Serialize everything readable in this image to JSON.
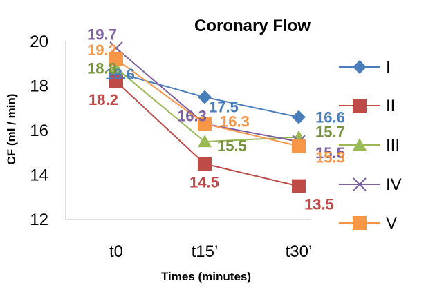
{
  "chart_data": {
    "type": "line",
    "title": "Coronary Flow",
    "xlabel": "Times (minutes)",
    "ylabel": "CF  (ml / min)",
    "categories": [
      "t0",
      "t15’",
      "t30’"
    ],
    "ylim": [
      12,
      20
    ],
    "yticks": [
      "12",
      "14",
      "16",
      "18",
      "20"
    ],
    "grid": false,
    "legend_position": "right",
    "series": [
      {
        "name": "I",
        "color": "#4a7ebb",
        "marker": "diamond",
        "values": [
          18.6,
          17.5,
          16.6
        ],
        "labels": [
          "18.6",
          "17.5",
          "16.6"
        ]
      },
      {
        "name": "II",
        "color": "#be4b48",
        "marker": "square",
        "values": [
          18.2,
          14.5,
          13.5
        ],
        "labels": [
          "18.2",
          "14.5",
          "13.5"
        ]
      },
      {
        "name": "III",
        "color": "#98b954",
        "label_color": "#76923c",
        "marker": "triangle",
        "values": [
          18.8,
          15.5,
          15.7
        ],
        "labels": [
          "18.8",
          "15.5",
          "15.7"
        ]
      },
      {
        "name": "IV",
        "color": "#7d60a0",
        "marker": "x",
        "values": [
          19.7,
          16.3,
          15.5
        ],
        "labels": [
          "19.7",
          "16.3",
          "15.5"
        ]
      },
      {
        "name": "V",
        "color": "#f79646",
        "marker": "square",
        "values": [
          19.2,
          16.3,
          15.3
        ],
        "labels": [
          "19.2",
          "16.3",
          "15.3"
        ]
      }
    ]
  }
}
